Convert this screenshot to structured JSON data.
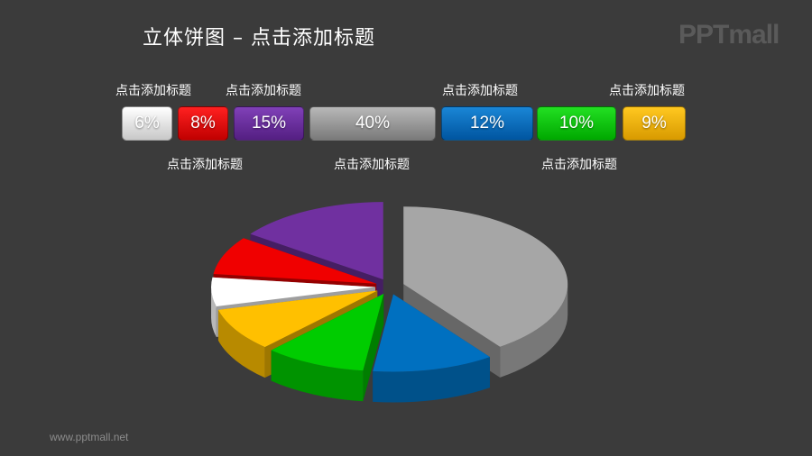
{
  "title": "立体饼图 – 点击添加标题",
  "logo": "PPTmall",
  "url": "www.pptmall.net",
  "chart_data": {
    "type": "pie",
    "title": "立体饼图 – 点击添加标题",
    "categories": [
      "点击添加标题",
      "点击添加标题",
      "点击添加标题",
      "点击添加标题",
      "点击添加标题",
      "点击添加标题",
      "点击添加标题"
    ],
    "values": [
      6,
      8,
      15,
      40,
      12,
      10,
      9
    ],
    "labels": [
      "6%",
      "8%",
      "15%",
      "40%",
      "12%",
      "10%",
      "9%"
    ],
    "colors": [
      "#ffffff",
      "#f00000",
      "#7030a0",
      "#a6a6a6",
      "#0070c0",
      "#00cc00",
      "#ffc000"
    ],
    "exploded": true,
    "style": "3d"
  }
}
